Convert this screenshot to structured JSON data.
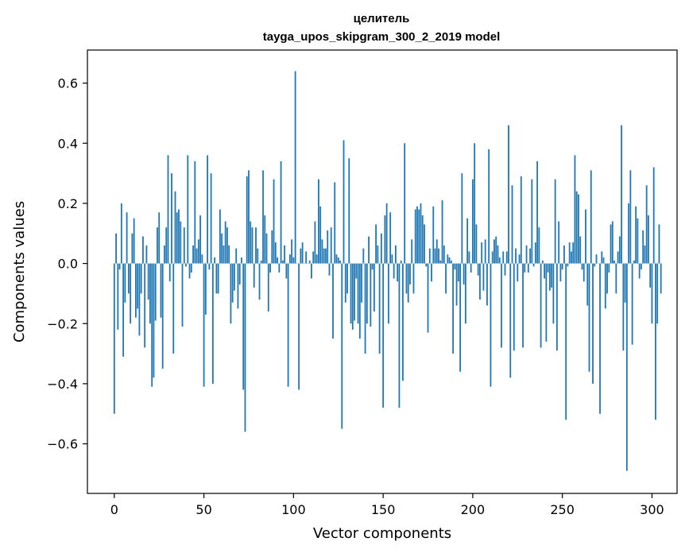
{
  "chart_data": {
    "type": "bar",
    "title": "целитель",
    "subtitle": "tayga_upos_skipgram_300_2_2019 model",
    "xlabel": "Vector components",
    "ylabel": "Components values",
    "xlim": [
      -15,
      314
    ],
    "ylim": [
      -0.765,
      0.71
    ],
    "xticks": [
      0,
      50,
      100,
      150,
      200,
      250,
      300
    ],
    "xtick_labels": [
      "0",
      "50",
      "100",
      "150",
      "200",
      "250",
      "300"
    ],
    "yticks": [
      -0.6,
      -0.4,
      -0.2,
      0.0,
      0.2,
      0.4,
      0.6
    ],
    "ytick_labels": [
      "−0.6",
      "−0.4",
      "−0.2",
      "0.0",
      "0.2",
      "0.4",
      "0.6"
    ],
    "grid": false,
    "bar_color": "#1f77b4",
    "values": [
      -0.5,
      0.1,
      -0.22,
      -0.02,
      0.2,
      -0.31,
      -0.13,
      0.17,
      -0.1,
      -0.2,
      0.1,
      0.15,
      -0.18,
      -0.15,
      -0.24,
      -0.1,
      0.09,
      -0.28,
      0.06,
      -0.12,
      -0.2,
      -0.41,
      -0.38,
      -0.19,
      0.12,
      0.17,
      -0.18,
      -0.35,
      0.06,
      0.12,
      0.36,
      -0.06,
      0.3,
      -0.3,
      0.24,
      0.17,
      0.18,
      0.14,
      -0.21,
      0.12,
      -0.01,
      0.36,
      -0.05,
      -0.03,
      0.06,
      0.34,
      0.05,
      0.08,
      0.16,
      0.03,
      -0.41,
      -0.17,
      0.36,
      -0.02,
      0.3,
      -0.4,
      0.02,
      -0.1,
      -0.1,
      0.18,
      0.1,
      0.06,
      0.14,
      0.12,
      0.06,
      -0.2,
      -0.13,
      -0.09,
      0.05,
      -0.15,
      -0.07,
      0.02,
      -0.42,
      -0.56,
      0.29,
      0.31,
      0.14,
      0.12,
      -0.08,
      0.12,
      0.05,
      -0.12,
      0.01,
      0.31,
      0.16,
      0.1,
      -0.16,
      -0.03,
      0.11,
      0.28,
      0.07,
      0.02,
      -0.03,
      0.34,
      0.01,
      0.06,
      -0.05,
      -0.41,
      0.03,
      0.08,
      0.02,
      0.64,
      0.0,
      -0.42,
      0.05,
      0.07,
      0.0,
      0.04,
      0.0,
      0.01,
      -0.05,
      0.04,
      0.14,
      0.03,
      0.28,
      0.19,
      0.08,
      0.05,
      0.05,
      0.11,
      -0.04,
      0.12,
      -0.25,
      0.27,
      0.03,
      0.02,
      0.01,
      -0.55,
      0.41,
      -0.13,
      -0.1,
      0.35,
      -0.2,
      -0.22,
      -0.19,
      -0.05,
      -0.2,
      -0.25,
      -0.13,
      0.05,
      -0.3,
      -0.2,
      0.09,
      -0.21,
      -0.02,
      -0.16,
      0.13,
      0.06,
      -0.3,
      0.1,
      -0.48,
      0.16,
      0.2,
      -0.2,
      0.17,
      0.03,
      -0.05,
      0.06,
      -0.06,
      -0.48,
      0.01,
      -0.39,
      0.4,
      -0.1,
      -0.13,
      -0.07,
      0.08,
      -0.1,
      0.18,
      0.19,
      0.18,
      0.2,
      0.16,
      0.13,
      -0.01,
      -0.23,
      0.05,
      -0.06,
      0.19,
      0.05,
      0.08,
      0.05,
      0.01,
      0.21,
      0.06,
      -0.1,
      0.03,
      0.02,
      0.01,
      -0.3,
      -0.02,
      -0.14,
      -0.06,
      -0.36,
      0.3,
      -0.07,
      -0.2,
      0.15,
      0.04,
      -0.03,
      0.28,
      0.4,
      0.13,
      -0.04,
      -0.12,
      0.07,
      -0.09,
      0.08,
      -0.14,
      0.38,
      -0.41,
      0.04,
      0.08,
      0.09,
      0.06,
      0.02,
      -0.28,
      0.04,
      -0.04,
      0.04,
      0.46,
      -0.38,
      0.26,
      -0.29,
      0.05,
      -0.06,
      0.03,
      0.29,
      -0.28,
      -0.03,
      0.06,
      -0.03,
      0.05,
      0.28,
      -0.01,
      0.07,
      0.34,
      0.12,
      -0.28,
      0.01,
      -0.05,
      -0.26,
      -0.03,
      -0.09,
      -0.08,
      -0.2,
      0.28,
      -0.29,
      0.14,
      -0.06,
      -0.02,
      0.06,
      -0.52,
      -0.01,
      0.07,
      0.04,
      0.07,
      0.36,
      0.24,
      0.23,
      0.09,
      -0.02,
      -0.06,
      0.18,
      -0.14,
      -0.36,
      0.31,
      -0.4,
      -0.01,
      0.03,
      0.0,
      -0.5,
      0.04,
      0.02,
      -0.15,
      -0.1,
      -0.03,
      0.13,
      0.14,
      0.01,
      -0.1,
      0.04,
      0.09,
      0.46,
      -0.29,
      -0.13,
      -0.69,
      0.2,
      0.31,
      -0.27,
      0.01,
      0.19,
      0.15,
      -0.05,
      -0.02,
      0.11,
      0.06,
      0.26,
      0.16,
      -0.08,
      -0.2,
      0.32,
      -0.52,
      -0.2,
      0.13,
      -0.1
    ]
  }
}
